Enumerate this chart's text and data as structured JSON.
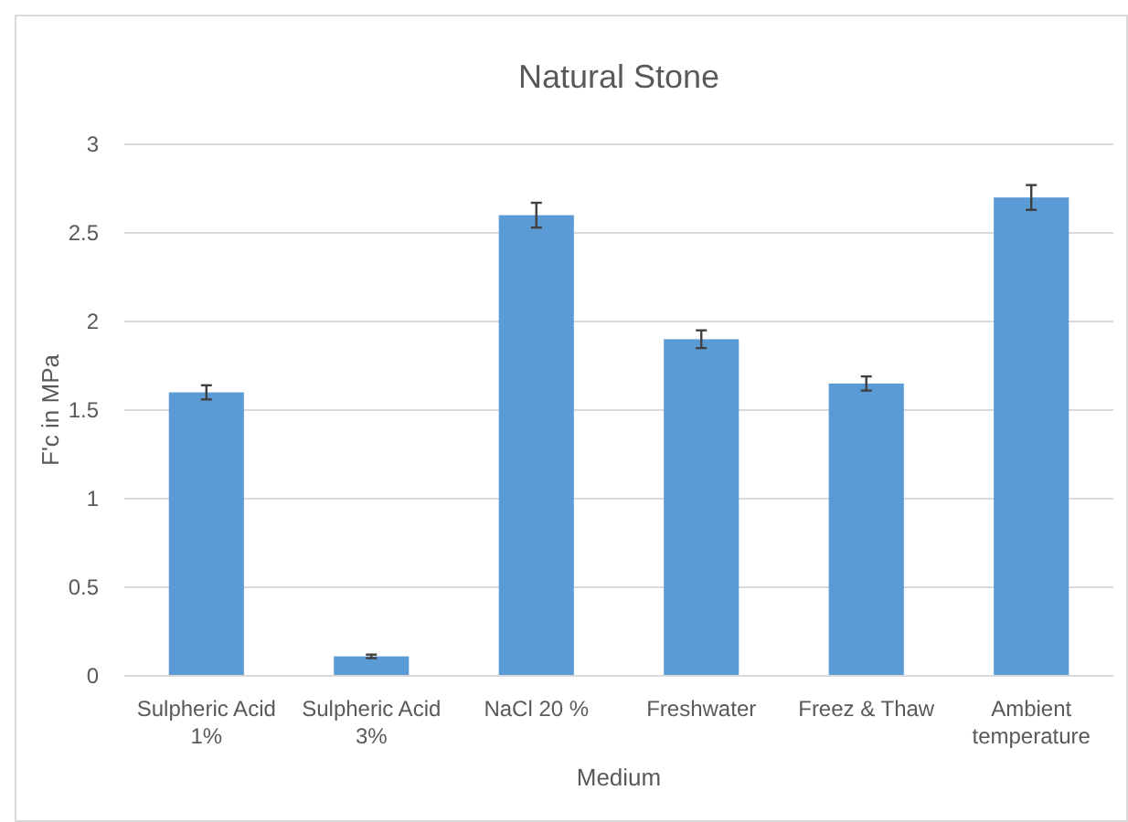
{
  "chart_data": {
    "type": "bar",
    "title": "Natural Stone",
    "xlabel": "Medium",
    "ylabel": "F'c in MPa",
    "categories": [
      "Sulpheric Acid 1%",
      "Sulpheric Acid 3%",
      "NaCl 20 %",
      "Freshwater",
      "Freez & Thaw",
      "Ambient temperature"
    ],
    "values": [
      1.6,
      0.11,
      2.6,
      1.9,
      1.65,
      2.7
    ],
    "errors": [
      0.04,
      0.01,
      0.07,
      0.05,
      0.04,
      0.07
    ],
    "color": "#5b9bd5",
    "ylim": [
      0,
      3
    ],
    "yticks": [
      0,
      0.5,
      1,
      1.5,
      2,
      2.5,
      3
    ],
    "grid": "y"
  }
}
